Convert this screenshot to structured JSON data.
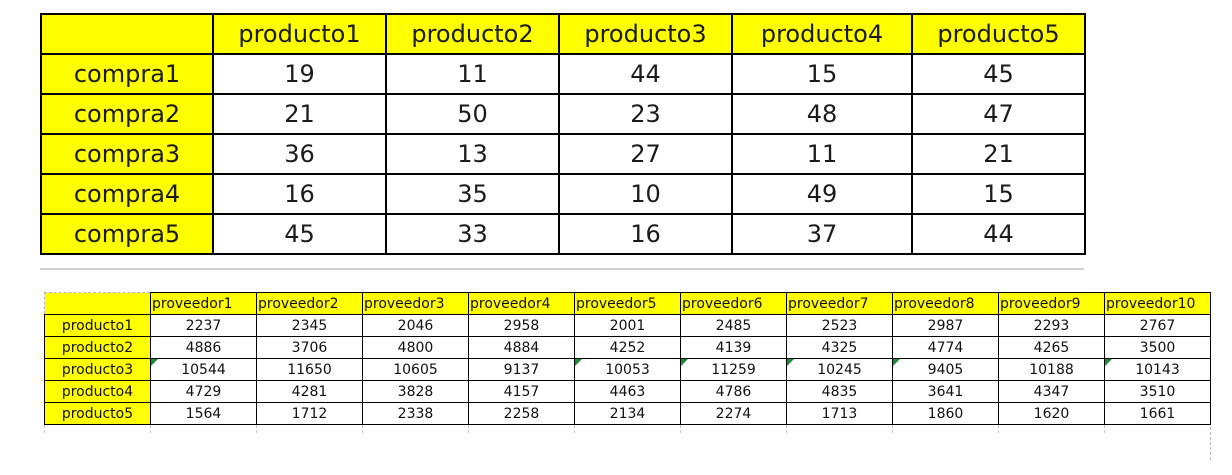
{
  "table_top": {
    "columns": [
      "producto1",
      "producto2",
      "producto3",
      "producto4",
      "producto5"
    ],
    "rows": [
      {
        "label": "compra1",
        "values": [
          "19",
          "11",
          "44",
          "15",
          "45"
        ]
      },
      {
        "label": "compra2",
        "values": [
          "21",
          "50",
          "23",
          "48",
          "47"
        ]
      },
      {
        "label": "compra3",
        "values": [
          "36",
          "13",
          "27",
          "11",
          "21"
        ]
      },
      {
        "label": "compra4",
        "values": [
          "16",
          "35",
          "10",
          "49",
          "15"
        ]
      },
      {
        "label": "compra5",
        "values": [
          "45",
          "33",
          "16",
          "37",
          "44"
        ]
      }
    ]
  },
  "table_bottom": {
    "columns": [
      "proveedor1",
      "proveedor2",
      "proveedor3",
      "proveedor4",
      "proveedor5",
      "proveedor6",
      "proveedor7",
      "proveedor8",
      "proveedor9",
      "proveedor10"
    ],
    "rows": [
      {
        "label": "producto1",
        "values": [
          "2237",
          "2345",
          "2046",
          "2958",
          "2001",
          "2485",
          "2523",
          "2987",
          "2293",
          "2767"
        ]
      },
      {
        "label": "producto2",
        "values": [
          "4886",
          "3706",
          "4800",
          "4884",
          "4252",
          "4139",
          "4325",
          "4774",
          "4265",
          "3500"
        ]
      },
      {
        "label": "producto3",
        "values": [
          "10544",
          "11650",
          "10605",
          "9137",
          "10053",
          "11259",
          "10245",
          "9405",
          "10188",
          "10143"
        ]
      },
      {
        "label": "producto4",
        "values": [
          "4729",
          "4281",
          "3828",
          "4157",
          "4463",
          "4786",
          "4835",
          "3641",
          "4347",
          "3510"
        ]
      },
      {
        "label": "producto5",
        "values": [
          "1564",
          "1712",
          "2338",
          "2258",
          "2134",
          "2274",
          "1713",
          "1860",
          "1620",
          "1661"
        ]
      }
    ]
  },
  "colors": {
    "header_fill": "#ffff00",
    "error_indicator": "#1f8a3a",
    "border": "#000000"
  }
}
